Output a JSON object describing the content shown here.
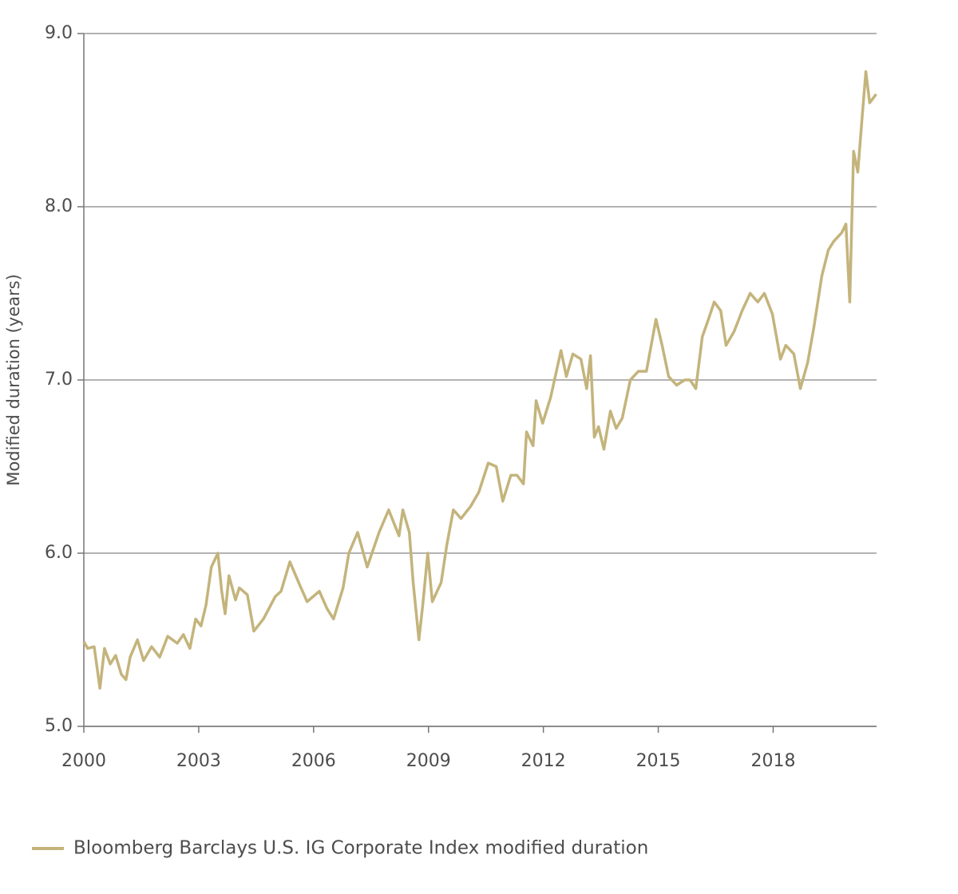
{
  "chart_data": {
    "type": "line",
    "y_label": "Modified duration (years)",
    "x": [
      2000.0,
      2000.1,
      2000.27,
      2000.42,
      2000.54,
      2000.69,
      2000.83,
      2000.98,
      2001.1,
      2001.21,
      2001.4,
      2001.56,
      2001.77,
      2001.98,
      2002.19,
      2002.44,
      2002.6,
      2002.77,
      2002.92,
      2003.06,
      2003.19,
      2003.33,
      2003.5,
      2003.6,
      2003.69,
      2003.79,
      2003.96,
      2004.06,
      2004.27,
      2004.44,
      2004.69,
      2005.0,
      2005.15,
      2005.38,
      2005.63,
      2005.83,
      2006.15,
      2006.35,
      2006.52,
      2006.77,
      2006.92,
      2007.15,
      2007.4,
      2007.71,
      2007.96,
      2008.23,
      2008.33,
      2008.5,
      2008.6,
      2008.75,
      2008.85,
      2008.98,
      2009.1,
      2009.33,
      2009.48,
      2009.65,
      2009.85,
      2010.1,
      2010.31,
      2010.56,
      2010.77,
      2010.94,
      2011.15,
      2011.31,
      2011.48,
      2011.56,
      2011.73,
      2011.81,
      2011.98,
      2012.19,
      2012.46,
      2012.6,
      2012.77,
      2012.98,
      2013.13,
      2013.23,
      2013.33,
      2013.44,
      2013.58,
      2013.75,
      2013.9,
      2014.06,
      2014.27,
      2014.48,
      2014.69,
      2014.94,
      2015.1,
      2015.27,
      2015.48,
      2015.69,
      2015.83,
      2015.98,
      2016.15,
      2016.31,
      2016.46,
      2016.63,
      2016.77,
      2016.98,
      2017.19,
      2017.4,
      2017.6,
      2017.77,
      2017.98,
      2018.19,
      2018.33,
      2018.54,
      2018.71,
      2018.9,
      2019.06,
      2019.27,
      2019.44,
      2019.58,
      2019.79,
      2019.9,
      2020.0,
      2020.1,
      2020.21,
      2020.31,
      2020.42,
      2020.52,
      2020.69
    ],
    "series": [
      {
        "name": "Bloomberg Barclays U.S. IG Corporate Index modified duration",
        "color": "#c4b47c",
        "values": [
          5.49,
          5.45,
          5.46,
          5.22,
          5.45,
          5.36,
          5.41,
          5.3,
          5.27,
          5.4,
          5.5,
          5.38,
          5.46,
          5.4,
          5.52,
          5.48,
          5.53,
          5.45,
          5.62,
          5.58,
          5.7,
          5.92,
          6.0,
          5.78,
          5.65,
          5.87,
          5.73,
          5.8,
          5.76,
          5.55,
          5.62,
          5.75,
          5.78,
          5.95,
          5.82,
          5.72,
          5.78,
          5.68,
          5.62,
          5.8,
          6.0,
          6.12,
          5.92,
          6.12,
          6.25,
          6.1,
          6.25,
          6.12,
          5.83,
          5.5,
          5.7,
          6.0,
          5.72,
          5.83,
          6.05,
          6.25,
          6.2,
          6.27,
          6.35,
          6.52,
          6.5,
          6.3,
          6.45,
          6.45,
          6.4,
          6.7,
          6.62,
          6.88,
          6.75,
          6.9,
          7.17,
          7.02,
          7.15,
          7.12,
          6.95,
          7.14,
          6.67,
          6.73,
          6.6,
          6.82,
          6.72,
          6.78,
          7.0,
          7.05,
          7.05,
          7.35,
          7.2,
          7.02,
          6.97,
          7.0,
          7.0,
          6.95,
          7.25,
          7.35,
          7.45,
          7.4,
          7.2,
          7.28,
          7.4,
          7.5,
          7.45,
          7.5,
          7.38,
          7.12,
          7.2,
          7.15,
          6.95,
          7.1,
          7.3,
          7.6,
          7.75,
          7.8,
          7.85,
          7.9,
          7.45,
          8.32,
          8.2,
          8.48,
          8.78,
          8.6,
          8.65
        ]
      }
    ],
    "xlim": [
      2000,
      2020.7
    ],
    "xticks": [
      2000,
      2003,
      2006,
      2009,
      2012,
      2015,
      2018
    ],
    "ylim": [
      5,
      9
    ],
    "yticks": [
      {
        "value": 5,
        "label": "5.0"
      },
      {
        "value": 6,
        "label": "6.0"
      },
      {
        "value": 7,
        "label": "7.0"
      },
      {
        "value": 8,
        "label": "8.0"
      },
      {
        "value": 9,
        "label": "9.0"
      }
    ],
    "grid": true,
    "legend": "bottom-left"
  }
}
